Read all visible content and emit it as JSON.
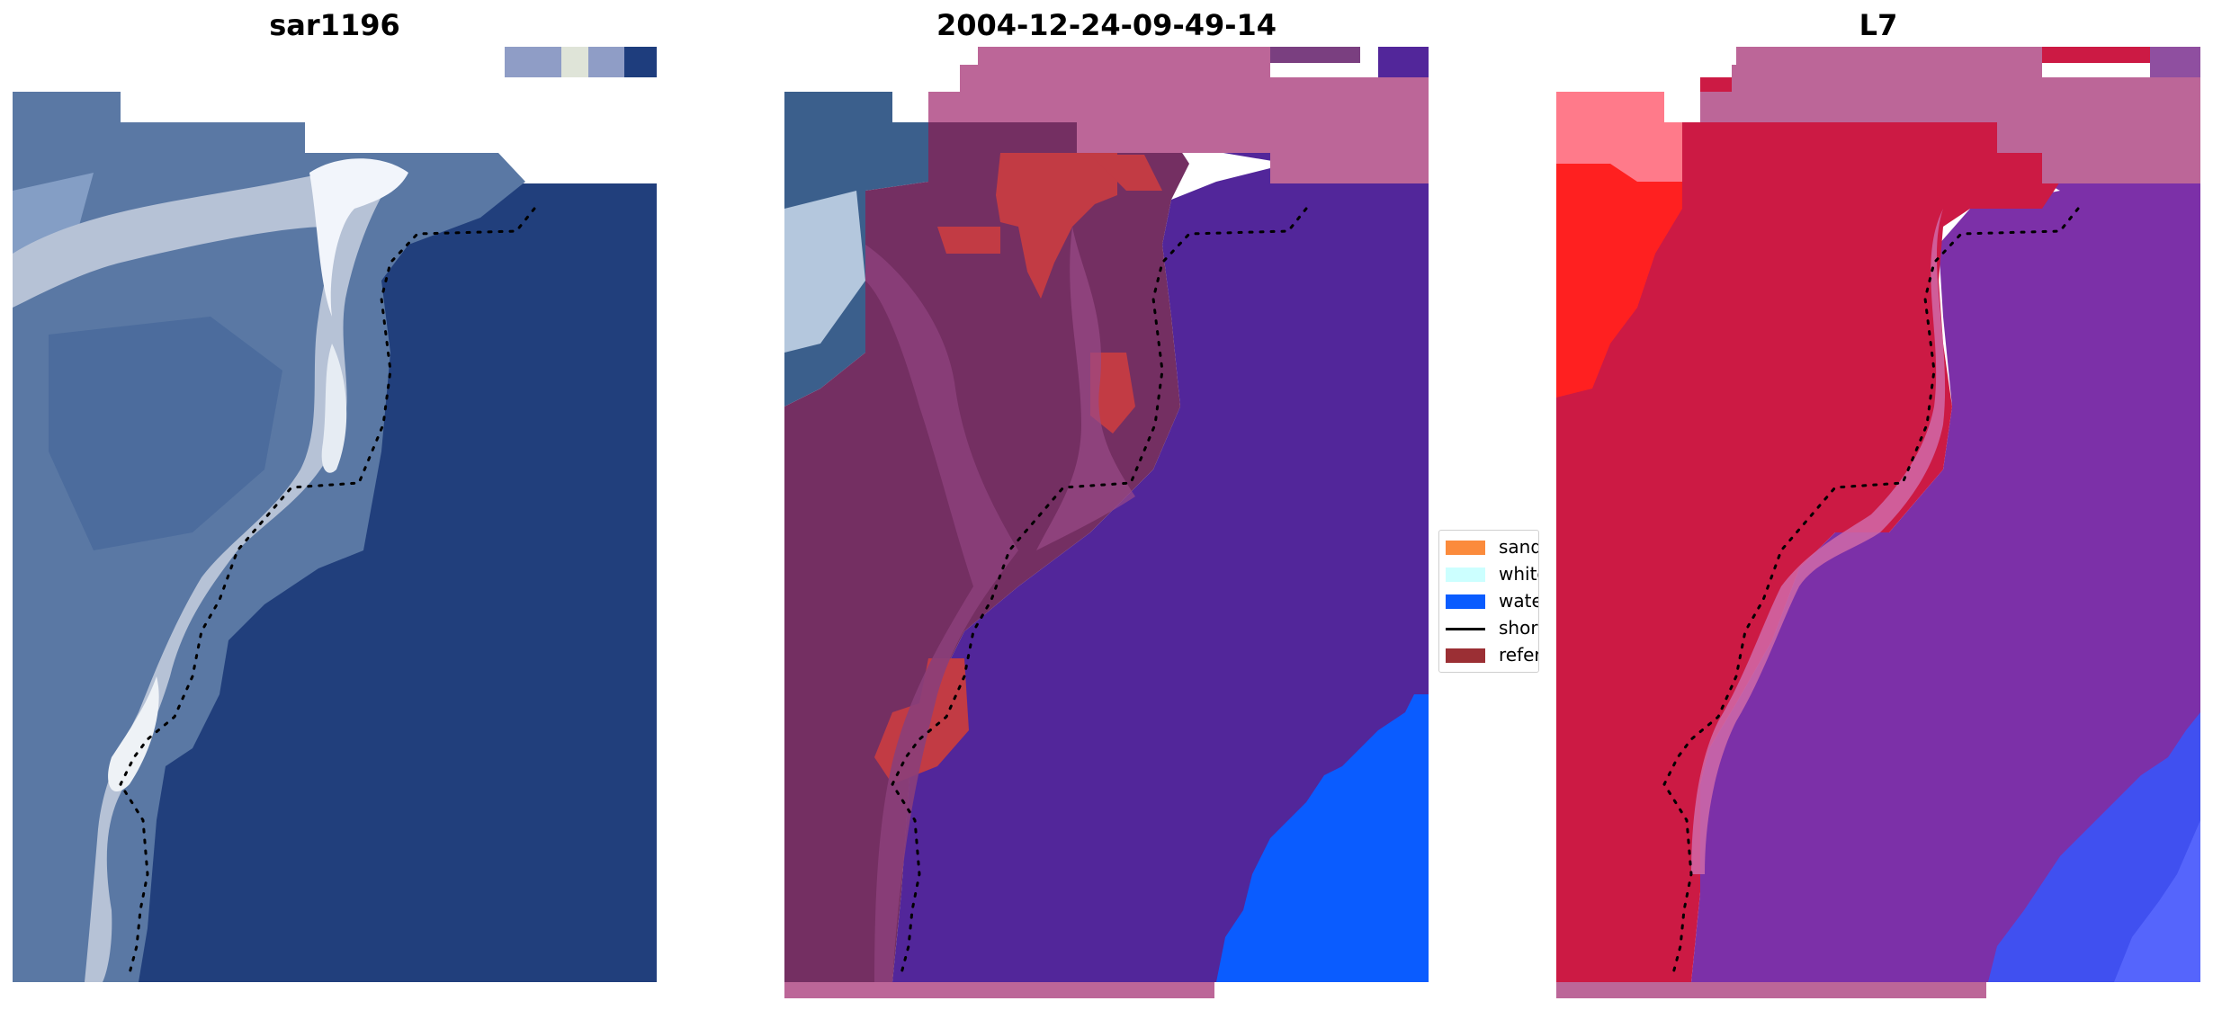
{
  "panels": [
    {
      "title": "sar1196"
    },
    {
      "title": "2004-12-24-09-49-14"
    },
    {
      "title": "L7"
    }
  ],
  "legend": {
    "items": [
      {
        "label": "sand",
        "color": "#fb8b3c",
        "type": "patch"
      },
      {
        "label": "whitewater",
        "color": "#ccffff",
        "type": "patch"
      },
      {
        "label": "water",
        "color": "#0a5cff",
        "type": "patch"
      },
      {
        "label": "shoreline",
        "color": "#000000",
        "type": "line"
      },
      {
        "label": "reference shoreline",
        "color": "#9b2f34",
        "type": "patch"
      }
    ]
  },
  "colors": {
    "ocean": "#213f7c",
    "land": "#5a78a4",
    "surf": "#dde6ee",
    "class_pink": "#bc6698",
    "class_maroon": "#742f62",
    "class_purple": "#52269a",
    "class_red": "#c23b44",
    "class_blue": "#0a5cff",
    "l7_red": "#cc1a44",
    "l7_bright_red": "#ff2020",
    "l7_purple": "#7c30a8",
    "l7_blue": "#4050f0"
  }
}
